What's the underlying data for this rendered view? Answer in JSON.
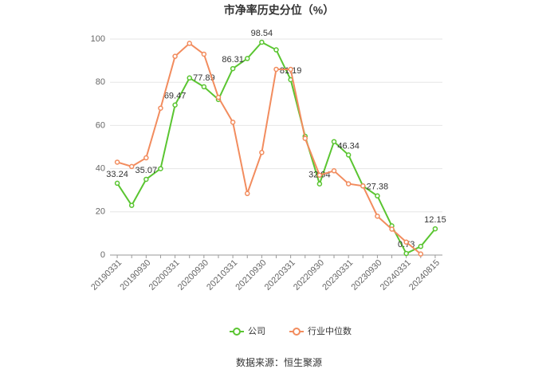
{
  "chart_data": {
    "type": "line",
    "title": "市净率历史分位（%）",
    "categories": [
      "20190331",
      null,
      "20190930",
      null,
      "20200331",
      null,
      "20200930",
      null,
      "20210331",
      null,
      "20210930",
      null,
      "20220331",
      null,
      "20220930",
      null,
      "20230331",
      null,
      "20230930",
      null,
      "20240331",
      null,
      "20240815"
    ],
    "series": [
      {
        "name": "公司",
        "color": "#5ac531",
        "values": [
          33.24,
          23,
          35.07,
          40,
          69.47,
          82,
          77.89,
          72,
          86.31,
          91,
          98.54,
          95,
          81.19,
          55,
          32.94,
          52.5,
          46.34,
          32,
          27.38,
          13.5,
          0.73,
          4,
          12.15
        ]
      },
      {
        "name": "行业中位数",
        "color": "#f28c5e",
        "values": [
          43,
          41,
          45,
          68,
          92,
          98,
          93,
          73,
          61.5,
          28.5,
          47.5,
          86,
          86,
          54,
          37,
          39,
          33,
          32,
          18,
          12,
          6,
          0.5,
          null
        ]
      }
    ],
    "ylim": [
      0,
      100
    ],
    "yticks": [
      0,
      20,
      40,
      60,
      80,
      100
    ],
    "grid": true,
    "legend": "bottom",
    "source": "数据来源：恒生聚源"
  }
}
